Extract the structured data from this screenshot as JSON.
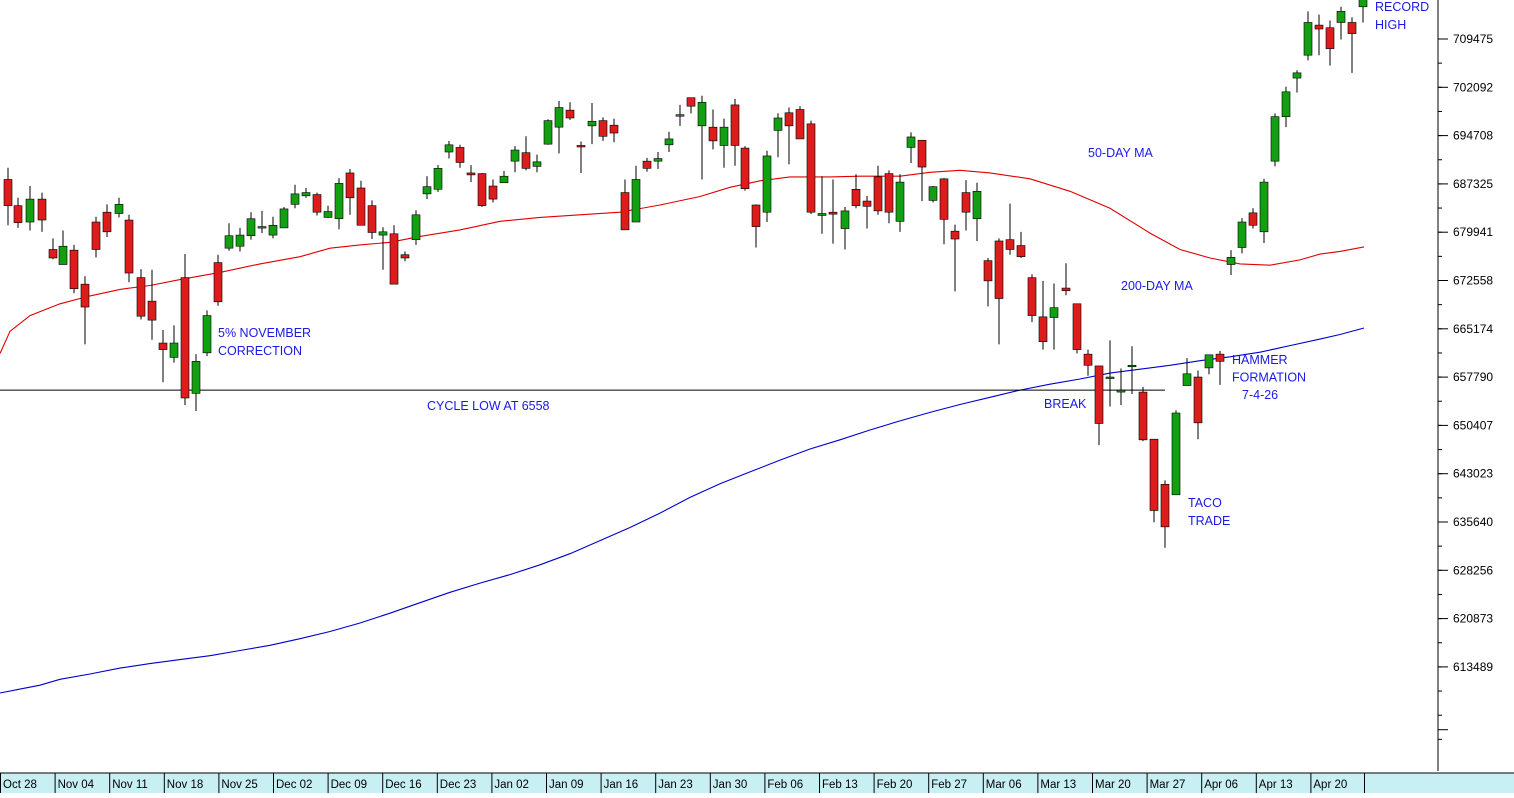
{
  "chart_data": {
    "type": "candlestick",
    "y_ticks": [
      "709475",
      "702092",
      "694708",
      "687325",
      "679941",
      "672558",
      "665174",
      "657790",
      "650407",
      "643023",
      "635640",
      "628256",
      "620873",
      "613489"
    ],
    "x_labels": [
      "Oct 28",
      "Nov 04",
      "Nov 11",
      "Nov 18",
      "Nov 25",
      "Dec 02",
      "Dec 09",
      "Dec 16",
      "Dec 23",
      "Jan 02",
      "Jan 09",
      "Jan 16",
      "Jan 23",
      "Jan 30",
      "Feb 06",
      "Feb 13",
      "Feb 20",
      "Feb 27",
      "Mar 06",
      "Mar 13",
      "Mar 20",
      "Mar 27",
      "Apr 06",
      "Apr 13",
      "Apr 20"
    ],
    "horizontal_line": {
      "value": 655800,
      "label": "CYCLE LOW AT 6558"
    },
    "annotations": [
      {
        "lines": [
          "RECORD",
          "HIGH"
        ]
      },
      {
        "lines": [
          "50-DAY MA"
        ]
      },
      {
        "lines": [
          "200-DAY MA"
        ]
      },
      {
        "lines": [
          "5% NOVEMBER",
          "CORRECTION"
        ]
      },
      {
        "lines": [
          "CYCLE LOW AT 6558"
        ]
      },
      {
        "lines": [
          "BREAK"
        ]
      },
      {
        "lines": [
          "HAMMER",
          "FORMATION",
          "7-4-26"
        ]
      },
      {
        "lines": [
          "TACO",
          "TRADE"
        ]
      }
    ],
    "series": [
      {
        "name": "50-DAY MA",
        "color": "#e00000",
        "points": [
          [
            0,
            661400
          ],
          [
            10,
            664800
          ],
          [
            30,
            667200
          ],
          [
            60,
            669000
          ],
          [
            90,
            670200
          ],
          [
            120,
            671200
          ],
          [
            150,
            671800
          ],
          [
            180,
            672700
          ],
          [
            220,
            673800
          ],
          [
            260,
            675100
          ],
          [
            300,
            676200
          ],
          [
            330,
            677500
          ],
          [
            360,
            678000
          ],
          [
            390,
            678400
          ],
          [
            420,
            679300
          ],
          [
            460,
            680300
          ],
          [
            500,
            681600
          ],
          [
            540,
            682200
          ],
          [
            580,
            682600
          ],
          [
            620,
            683000
          ],
          [
            660,
            684100
          ],
          [
            700,
            685400
          ],
          [
            730,
            686800
          ],
          [
            760,
            687800
          ],
          [
            790,
            688400
          ],
          [
            830,
            688400
          ],
          [
            860,
            688500
          ],
          [
            900,
            688500
          ],
          [
            930,
            689100
          ],
          [
            960,
            689400
          ],
          [
            990,
            689000
          ],
          [
            1030,
            688100
          ],
          [
            1070,
            686200
          ],
          [
            1110,
            683600
          ],
          [
            1150,
            679800
          ],
          [
            1180,
            677300
          ],
          [
            1210,
            676000
          ],
          [
            1240,
            675100
          ],
          [
            1270,
            674900
          ],
          [
            1300,
            675700
          ],
          [
            1320,
            676600
          ],
          [
            1340,
            677000
          ],
          [
            1364,
            677700
          ]
        ]
      },
      {
        "name": "200-DAY MA",
        "color": "#0000cc",
        "points": [
          [
            0,
            609500
          ],
          [
            20,
            610100
          ],
          [
            40,
            610700
          ],
          [
            60,
            611600
          ],
          [
            90,
            612400
          ],
          [
            120,
            613300
          ],
          [
            150,
            614000
          ],
          [
            180,
            614600
          ],
          [
            210,
            615200
          ],
          [
            240,
            616000
          ],
          [
            270,
            616800
          ],
          [
            300,
            617800
          ],
          [
            330,
            618900
          ],
          [
            360,
            620200
          ],
          [
            390,
            621700
          ],
          [
            420,
            623300
          ],
          [
            450,
            624900
          ],
          [
            480,
            626300
          ],
          [
            510,
            627600
          ],
          [
            540,
            629100
          ],
          [
            570,
            630800
          ],
          [
            600,
            632800
          ],
          [
            630,
            634800
          ],
          [
            660,
            637000
          ],
          [
            690,
            639400
          ],
          [
            720,
            641500
          ],
          [
            750,
            643300
          ],
          [
            780,
            645100
          ],
          [
            810,
            646800
          ],
          [
            840,
            648200
          ],
          [
            870,
            649700
          ],
          [
            900,
            651100
          ],
          [
            930,
            652400
          ],
          [
            960,
            653600
          ],
          [
            990,
            654700
          ],
          [
            1020,
            655800
          ],
          [
            1050,
            656700
          ],
          [
            1080,
            657500
          ],
          [
            1110,
            658400
          ],
          [
            1140,
            659000
          ],
          [
            1170,
            659600
          ],
          [
            1200,
            660300
          ],
          [
            1230,
            660900
          ],
          [
            1260,
            661600
          ],
          [
            1290,
            662600
          ],
          [
            1320,
            663600
          ],
          [
            1340,
            664300
          ],
          [
            1364,
            665300
          ]
        ]
      }
    ],
    "candles": [
      [
        8,
        688000,
        684000,
        689800,
        681000
      ],
      [
        18,
        684000,
        681400,
        685200,
        680600
      ],
      [
        30,
        681500,
        685000,
        687000,
        680200
      ],
      [
        42,
        685000,
        681800,
        686000,
        680000
      ],
      [
        53,
        677300,
        676000,
        679000,
        675800
      ],
      [
        63,
        675000,
        677800,
        680200,
        675400
      ],
      [
        74,
        677200,
        671300,
        678000,
        670600
      ],
      [
        85,
        672000,
        668500,
        673200,
        662800
      ],
      [
        96,
        681500,
        677300,
        682300,
        676100
      ],
      [
        107,
        683000,
        680000,
        684200,
        679200
      ],
      [
        119,
        682800,
        684200,
        685200,
        682200
      ],
      [
        129,
        681800,
        673700,
        682600,
        672300
      ],
      [
        141,
        673000,
        667100,
        674300,
        666600
      ],
      [
        152,
        669400,
        666500,
        674200,
        663500
      ],
      [
        163,
        663000,
        662000,
        665000,
        657000
      ],
      [
        174,
        660800,
        663000,
        665700,
        660000
      ],
      [
        185,
        673000,
        654600,
        676600,
        653500
      ],
      [
        196,
        655300,
        660200,
        661300,
        652600
      ],
      [
        207,
        661500,
        667200,
        668000,
        661000
      ],
      [
        218,
        675300,
        669300,
        676500,
        668700
      ],
      [
        229,
        677500,
        679400,
        681300,
        677100
      ],
      [
        240,
        677800,
        679500,
        680600,
        677000
      ],
      [
        251,
        679400,
        682000,
        683000,
        678800
      ],
      [
        262,
        680600,
        680800,
        683200,
        679800
      ],
      [
        273,
        679500,
        681000,
        682300,
        679000
      ],
      [
        284,
        680600,
        683500,
        683800,
        680600
      ],
      [
        295,
        684200,
        685800,
        687200,
        683600
      ],
      [
        306,
        685500,
        686000,
        686700,
        685200
      ],
      [
        317,
        685700,
        683000,
        686000,
        682500
      ],
      [
        328,
        682200,
        683100,
        684000,
        682100
      ],
      [
        339,
        682000,
        687400,
        688200,
        680400
      ],
      [
        350,
        689000,
        685200,
        689600,
        682600
      ],
      [
        361,
        686700,
        681000,
        687800,
        681600
      ],
      [
        372,
        684000,
        679900,
        684800,
        678900
      ],
      [
        383,
        679500,
        680000,
        680700,
        674200
      ],
      [
        394,
        679700,
        672000,
        681000,
        672000
      ],
      [
        405,
        676500,
        676000,
        677000,
        675500
      ],
      [
        416,
        678800,
        682600,
        683300,
        678000
      ],
      [
        427,
        685800,
        686900,
        688500,
        685000
      ],
      [
        438,
        686500,
        689700,
        690200,
        686100
      ],
      [
        449,
        692200,
        693300,
        693900,
        691200
      ],
      [
        460,
        692900,
        690600,
        693300,
        689800
      ],
      [
        471,
        689000,
        688700,
        690200,
        687600
      ],
      [
        482,
        688900,
        684000,
        689000,
        683800
      ],
      [
        493,
        687000,
        685000,
        688000,
        684500
      ],
      [
        504,
        687500,
        688500,
        689300,
        687500
      ],
      [
        515,
        690800,
        692500,
        693100,
        689100
      ],
      [
        526,
        692100,
        689700,
        694600,
        689400
      ],
      [
        537,
        690000,
        690700,
        691800,
        689100
      ],
      [
        548,
        693400,
        697000,
        697200,
        693300
      ],
      [
        559,
        696000,
        699000,
        700000,
        692000
      ],
      [
        570,
        698600,
        697400,
        699800,
        697100
      ],
      [
        581,
        693200,
        693000,
        693800,
        689000
      ],
      [
        592,
        696200,
        696900,
        699700,
        693400
      ],
      [
        603,
        697000,
        694600,
        697500,
        693900
      ],
      [
        614,
        696300,
        695100,
        697300,
        693700
      ],
      [
        625,
        686000,
        680300,
        688000,
        680500
      ],
      [
        636,
        681500,
        688000,
        690100,
        681500
      ],
      [
        647,
        690800,
        689700,
        691300,
        689200
      ],
      [
        658,
        690800,
        691200,
        692200,
        689600
      ],
      [
        669,
        693300,
        694200,
        695300,
        692200
      ],
      [
        680,
        697800,
        697900,
        699400,
        696200
      ],
      [
        691,
        700500,
        699200,
        700500,
        698100
      ],
      [
        702,
        696200,
        699800,
        700800,
        688000
      ],
      [
        713,
        696000,
        693900,
        698700,
        692600
      ],
      [
        724,
        693200,
        696000,
        697300,
        689800
      ],
      [
        735,
        699400,
        693200,
        700300,
        690100
      ],
      [
        745,
        692800,
        686600,
        693100,
        686300
      ],
      [
        756,
        684100,
        680800,
        684200,
        677600
      ],
      [
        767,
        683000,
        691600,
        692400,
        681500
      ],
      [
        778,
        695500,
        697400,
        698100,
        691400
      ],
      [
        789,
        698200,
        696200,
        699000,
        690300
      ],
      [
        800,
        698700,
        694200,
        699200,
        694300
      ],
      [
        811,
        696500,
        683000,
        697000,
        682700
      ],
      [
        822,
        682500,
        682800,
        688500,
        679700
      ],
      [
        833,
        683000,
        682700,
        688000,
        678200
      ],
      [
        845,
        680500,
        683200,
        683800,
        677300
      ],
      [
        856,
        686500,
        684000,
        688800,
        683600
      ],
      [
        867,
        684700,
        683900,
        685500,
        680500
      ],
      [
        878,
        688400,
        683200,
        690100,
        682600
      ],
      [
        889,
        688900,
        683000,
        689400,
        681300
      ],
      [
        900,
        681600,
        687600,
        688800,
        680000
      ],
      [
        911,
        692900,
        694500,
        695200,
        690500
      ],
      [
        922,
        694000,
        689900,
        694000,
        684700
      ],
      [
        933,
        684800,
        686900,
        687000,
        684500
      ],
      [
        944,
        688100,
        681900,
        688200,
        678100
      ],
      [
        955,
        680100,
        678900,
        681100,
        670900
      ],
      [
        966,
        686000,
        683000,
        687900,
        680200
      ],
      [
        977,
        682000,
        686200,
        687500,
        678600
      ],
      [
        988,
        675600,
        672500,
        676000,
        668600
      ],
      [
        999,
        678600,
        669800,
        679000,
        662800
      ],
      [
        1010,
        678800,
        677300,
        684300,
        676500
      ],
      [
        1021,
        677900,
        676200,
        680000,
        676000
      ],
      [
        1032,
        673000,
        667200,
        673500,
        666200
      ],
      [
        1043,
        667000,
        663200,
        672500,
        662000
      ],
      [
        1054,
        666900,
        668400,
        672100,
        662000
      ],
      [
        1066,
        671400,
        671000,
        675200,
        670300
      ],
      [
        1077,
        669000,
        662000,
        669000,
        661400
      ],
      [
        1088,
        661300,
        659600,
        662000,
        658000
      ],
      [
        1099,
        659500,
        650700,
        659400,
        647400
      ],
      [
        1110,
        657700,
        657800,
        663400,
        653300
      ],
      [
        1121,
        655500,
        655800,
        659100,
        653500
      ],
      [
        1132,
        659600,
        659600,
        662500,
        655200
      ],
      [
        1143,
        655500,
        648200,
        656300,
        648000
      ],
      [
        1154,
        648300,
        637400,
        648200,
        635600
      ],
      [
        1165,
        641400,
        634900,
        642000,
        631700
      ],
      [
        1176,
        639800,
        652300,
        652700,
        639800
      ],
      [
        1187,
        656500,
        658300,
        660700,
        656500
      ],
      [
        1198,
        657800,
        650800,
        658800,
        648300
      ],
      [
        1209,
        659200,
        661200,
        661200,
        658200
      ],
      [
        1220,
        661300,
        660200,
        661800,
        656600
      ],
      [
        1231,
        675000,
        676100,
        677200,
        673400
      ],
      [
        1242,
        677600,
        681500,
        682100,
        676700
      ],
      [
        1253,
        682900,
        681000,
        683600,
        680500
      ],
      [
        1264,
        680000,
        687600,
        688100,
        678300
      ],
      [
        1275,
        690800,
        697600,
        698100,
        690000
      ],
      [
        1286,
        697600,
        701400,
        702200,
        696000
      ],
      [
        1297,
        703500,
        704300,
        704700,
        701300
      ],
      [
        1308,
        707000,
        712000,
        713700,
        706200
      ],
      [
        1319,
        711600,
        711000,
        713200,
        707000
      ],
      [
        1330,
        711200,
        708000,
        712300,
        705400
      ],
      [
        1341,
        712000,
        713700,
        714400,
        709400
      ],
      [
        1352,
        712000,
        710300,
        712800,
        704300
      ],
      [
        1363,
        714400,
        716000,
        716200,
        712000
      ]
    ]
  }
}
